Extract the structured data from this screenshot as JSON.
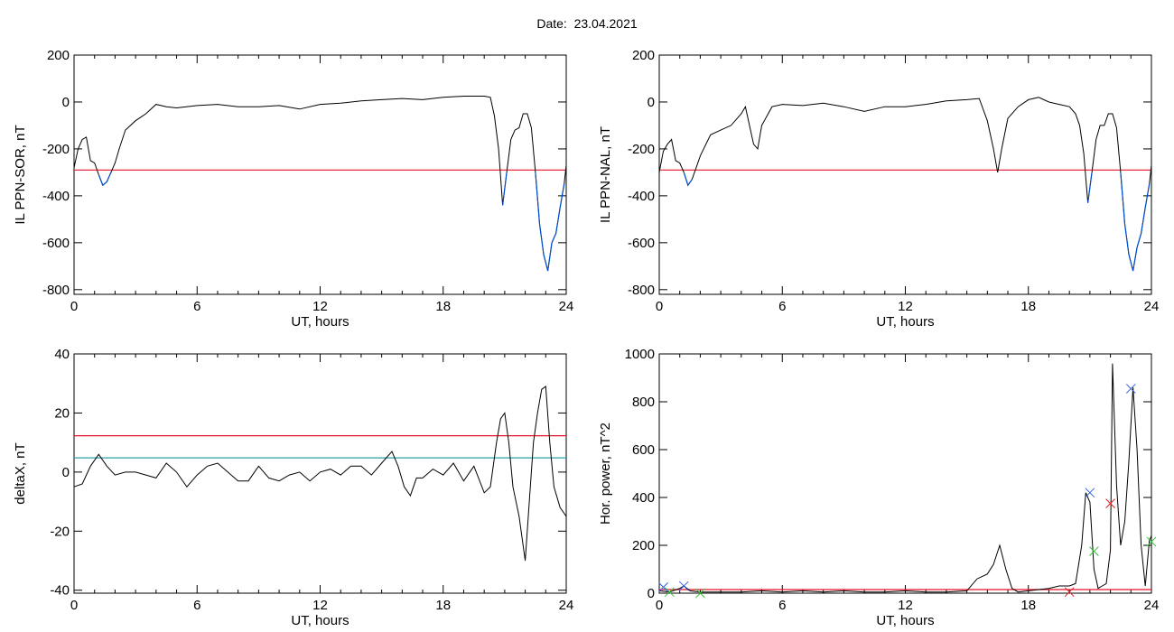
{
  "page": {
    "title": "Date:  23.04.2021"
  },
  "colors": {
    "trace": "#000000",
    "subtrace": "#0050d0",
    "threshold_red": "#e8102a",
    "threshold_cyan": "#2ba0a8",
    "marker_blue": "#3060e0",
    "marker_red": "#e02020",
    "marker_green": "#40c040"
  },
  "chart_data": [
    {
      "type": "line",
      "xlabel": "UT, hours",
      "ylabel": "IL PPN-SOR, nT",
      "xlim": [
        0,
        24
      ],
      "ylim": [
        -820,
        200
      ],
      "xticks": [
        "0",
        "6",
        "12",
        "18",
        "24"
      ],
      "yticks": [
        "200",
        "0",
        "-200",
        "-400",
        "-600",
        "-800"
      ],
      "series": [
        {
          "values_x": [
            0,
            0.2,
            0.4,
            0.6,
            0.8,
            1.0,
            1.2,
            1.4,
            1.6,
            1.8,
            2.0,
            2.2,
            2.5,
            3,
            3.5,
            4,
            4.5,
            5,
            6,
            7,
            8,
            9,
            10,
            11,
            12,
            13,
            14,
            15,
            16,
            17,
            18,
            19,
            20,
            20.3,
            20.5,
            20.7,
            20.9,
            21.1,
            21.3,
            21.5,
            21.7,
            21.9,
            22.1,
            22.3,
            22.5,
            22.7,
            22.9,
            23.1,
            23.3,
            23.5,
            23.7,
            23.9,
            24
          ],
          "values_y": [
            -280,
            -200,
            -160,
            -150,
            -250,
            -260,
            -310,
            -355,
            -340,
            -300,
            -260,
            -200,
            -120,
            -80,
            -50,
            -10,
            -20,
            -25,
            -15,
            -10,
            -20,
            -20,
            -15,
            -30,
            -10,
            -5,
            5,
            10,
            15,
            10,
            20,
            25,
            25,
            20,
            -60,
            -200,
            -440,
            -300,
            -160,
            -120,
            -110,
            -50,
            -50,
            -110,
            -300,
            -520,
            -650,
            -720,
            -600,
            -560,
            -450,
            -350,
            -270
          ]
        }
      ],
      "threshold": -290
    },
    {
      "type": "line",
      "xlabel": "UT, hours",
      "ylabel": "IL PPN-NAL, nT",
      "xlim": [
        0,
        24
      ],
      "ylim": [
        -820,
        200
      ],
      "xticks": [
        "0",
        "6",
        "12",
        "18",
        "24"
      ],
      "yticks": [
        "200",
        "0",
        "-200",
        "-400",
        "-600",
        "-800"
      ],
      "series": [
        {
          "values_x": [
            0,
            0.2,
            0.4,
            0.6,
            0.8,
            1.0,
            1.2,
            1.4,
            1.6,
            1.8,
            2.0,
            2.5,
            3,
            3.5,
            4,
            4.2,
            4.4,
            4.6,
            4.8,
            5,
            5.5,
            6,
            7,
            8,
            9,
            10,
            11,
            12,
            13,
            14,
            15,
            15.6,
            16,
            16.3,
            16.5,
            16.7,
            17,
            17.5,
            18,
            18.5,
            19,
            19.5,
            20,
            20.3,
            20.5,
            20.7,
            20.9,
            21.1,
            21.3,
            21.5,
            21.7,
            21.9,
            22.1,
            22.3,
            22.5,
            22.7,
            22.9,
            23.1,
            23.3,
            23.5,
            23.7,
            23.9,
            24
          ],
          "values_y": [
            -300,
            -210,
            -180,
            -160,
            -250,
            -260,
            -300,
            -355,
            -330,
            -280,
            -230,
            -140,
            -120,
            -100,
            -50,
            -20,
            -100,
            -180,
            -200,
            -100,
            -20,
            -10,
            -15,
            -5,
            -20,
            -40,
            -20,
            -20,
            -10,
            5,
            10,
            15,
            -80,
            -200,
            -300,
            -200,
            -70,
            -20,
            10,
            20,
            0,
            -10,
            -20,
            -50,
            -100,
            -220,
            -430,
            -300,
            -160,
            -100,
            -100,
            -50,
            -50,
            -110,
            -300,
            -520,
            -650,
            -720,
            -620,
            -560,
            -450,
            -350,
            -270
          ]
        }
      ],
      "threshold": -290
    },
    {
      "type": "line",
      "xlabel": "UT, hours",
      "ylabel": "deltaX, nT",
      "xlim": [
        0,
        24
      ],
      "ylim": [
        -41,
        40
      ],
      "xticks": [
        "0",
        "6",
        "12",
        "18",
        "24"
      ],
      "yticks": [
        "40",
        "20",
        "0",
        "-20",
        "-40"
      ],
      "series": [
        {
          "values_x": [
            0,
            0.4,
            0.8,
            1.2,
            1.6,
            2.0,
            2.5,
            3,
            3.5,
            4,
            4.5,
            5,
            5.5,
            6,
            6.5,
            7,
            7.5,
            8,
            8.5,
            9,
            9.5,
            10,
            10.5,
            11,
            11.5,
            12,
            12.5,
            13,
            13.5,
            14,
            14.5,
            15,
            15.5,
            15.8,
            16.1,
            16.4,
            16.7,
            17,
            17.5,
            18,
            18.5,
            19,
            19.5,
            20,
            20.3,
            20.6,
            20.8,
            21,
            21.2,
            21.4,
            21.7,
            22,
            22.2,
            22.4,
            22.6,
            22.8,
            23,
            23.2,
            23.4,
            23.7,
            24
          ],
          "values_y": [
            -5,
            -4,
            2,
            6,
            2,
            -1,
            0,
            0,
            -1,
            -2,
            3,
            0,
            -5,
            -1,
            2,
            3,
            0,
            -3,
            -3,
            2,
            -2,
            -3,
            -1,
            0,
            -3,
            0,
            1,
            -1,
            2,
            2,
            -1,
            3,
            7,
            2,
            -5,
            -8,
            -2,
            -2,
            1,
            -1,
            3,
            -3,
            2,
            -7,
            -5,
            10,
            18,
            20,
            10,
            -5,
            -15,
            -30,
            -10,
            10,
            20,
            28,
            29,
            10,
            -5,
            -12,
            -15
          ]
        }
      ],
      "thresholds": [
        {
          "color": "red",
          "value": 12.3
        },
        {
          "color": "cyan",
          "value": 4.8
        }
      ]
    },
    {
      "type": "line",
      "xlabel": "UT, hours",
      "ylabel": "Hor. power, nT^2",
      "xlim": [
        0,
        24
      ],
      "ylim": [
        0,
        1000
      ],
      "xticks": [
        "0",
        "6",
        "12",
        "18",
        "24"
      ],
      "yticks": [
        "1000",
        "800",
        "600",
        "400",
        "200",
        "0"
      ],
      "series": [
        {
          "values_x": [
            0,
            0.5,
            1,
            1.2,
            1.5,
            2,
            3,
            4,
            5,
            6,
            7,
            8,
            9,
            10,
            11,
            12,
            13,
            14,
            15,
            15.5,
            16,
            16.3,
            16.6,
            16.9,
            17.2,
            17.5,
            18,
            18.5,
            19,
            19.5,
            20,
            20.3,
            20.6,
            20.8,
            21,
            21.2,
            21.4,
            21.6,
            21.8,
            22.0,
            22.1,
            22.3,
            22.5,
            22.7,
            22.9,
            23.1,
            23.3,
            23.5,
            23.7,
            23.9,
            24
          ],
          "values_y": [
            10,
            5,
            20,
            30,
            10,
            5,
            5,
            5,
            10,
            5,
            10,
            5,
            10,
            5,
            5,
            10,
            5,
            5,
            10,
            60,
            80,
            120,
            200,
            100,
            20,
            5,
            10,
            15,
            20,
            30,
            30,
            40,
            200,
            420,
            380,
            100,
            20,
            30,
            40,
            180,
            960,
            450,
            200,
            300,
            550,
            860,
            600,
            200,
            30,
            220,
            240
          ]
        }
      ],
      "threshold": 15,
      "markers": [
        {
          "x": 0.2,
          "y": 25,
          "color": "blue"
        },
        {
          "x": 1.2,
          "y": 30,
          "color": "blue"
        },
        {
          "x": 21.0,
          "y": 420,
          "color": "blue"
        },
        {
          "x": 23.0,
          "y": 855,
          "color": "blue"
        },
        {
          "x": 22.0,
          "y": 375,
          "color": "red"
        },
        {
          "x": 20.0,
          "y": 5,
          "color": "red"
        },
        {
          "x": 21.2,
          "y": 175,
          "color": "green"
        },
        {
          "x": 0.5,
          "y": 5,
          "color": "green"
        },
        {
          "x": 2.0,
          "y": 0,
          "color": "green"
        },
        {
          "x": 24.0,
          "y": 215,
          "color": "green"
        }
      ]
    }
  ]
}
